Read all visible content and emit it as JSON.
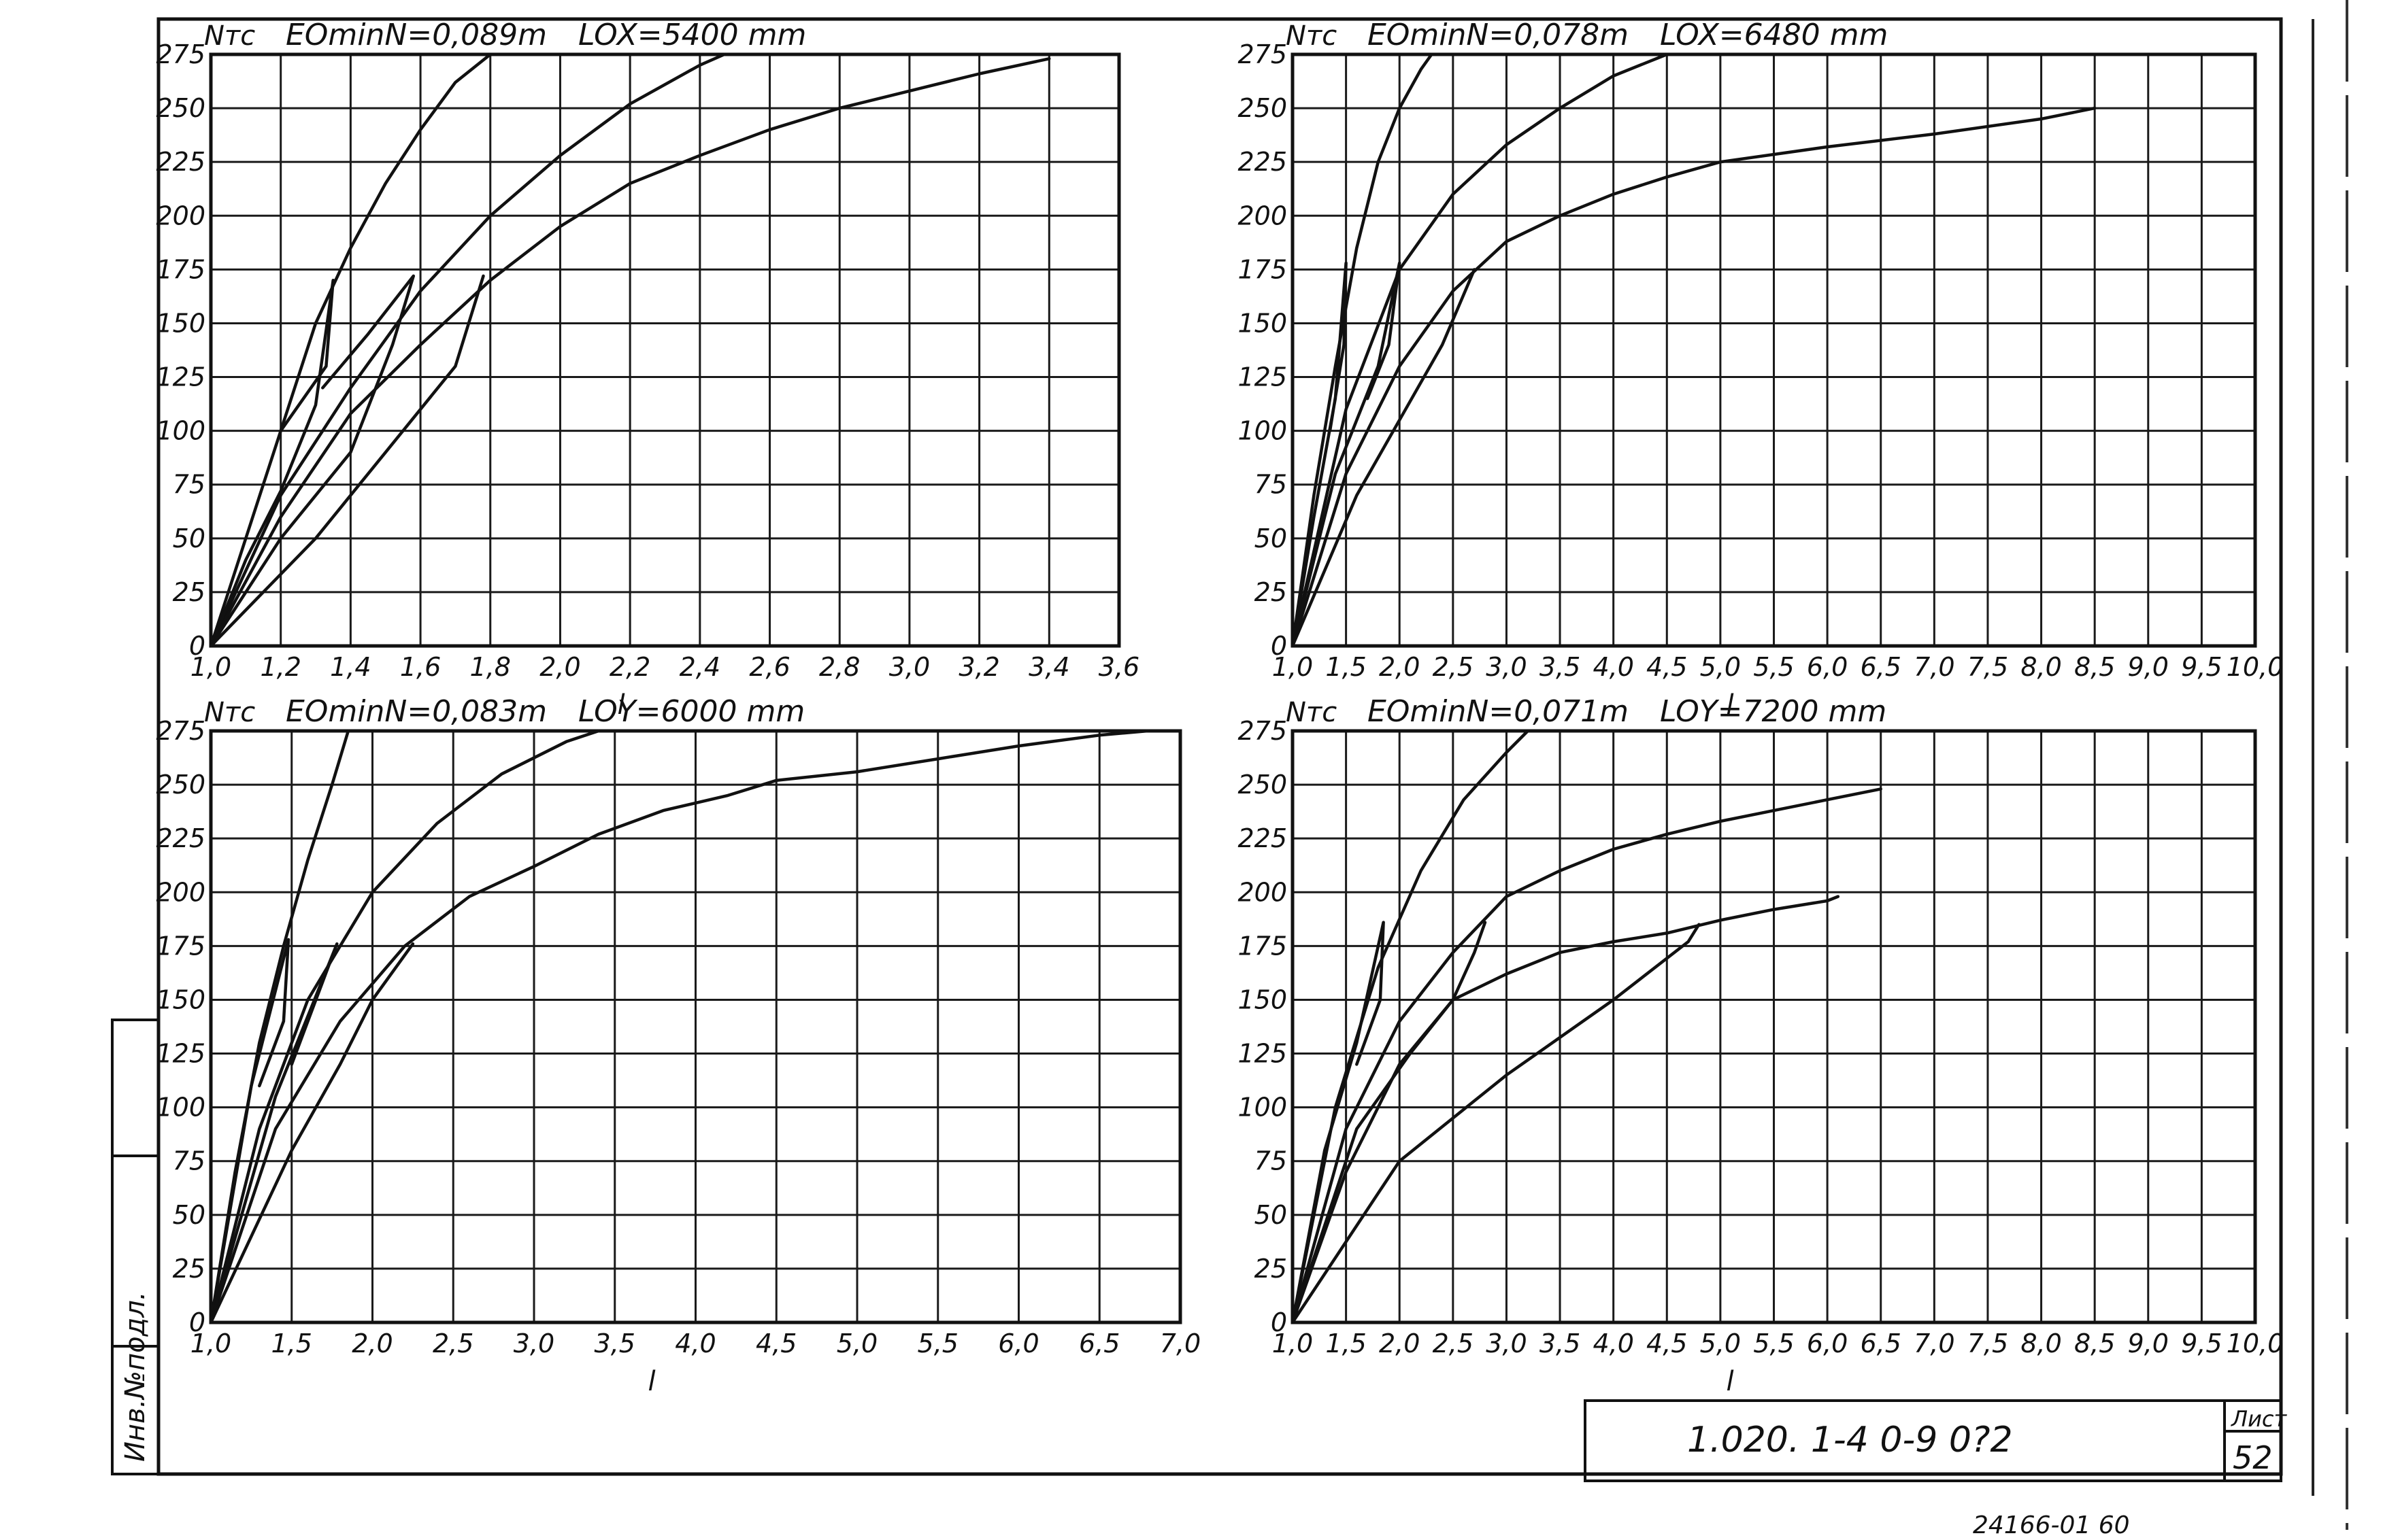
{
  "sheet": {
    "stamp_code": "1.020. 1-4    0-9    0?2",
    "sheet_label": "Лист",
    "sheet_number": "52",
    "bottom_code": "24166-01   60",
    "side_label": "Инв.№подл."
  },
  "chart_data": [
    {
      "type": "line",
      "panel": "top-left",
      "ylabel": "Nтс",
      "xlabel": "l",
      "annotation_e": "EOminN=0,089m",
      "annotation_l": "LOX=5400 mm",
      "xlim": [
        1.0,
        3.6
      ],
      "ylim": [
        0,
        275
      ],
      "x_ticks": [
        "1,0",
        "1,2",
        "1,4",
        "1,6",
        "1,8",
        "2,0",
        "2,2",
        "2,4",
        "2,6",
        "2,8",
        "3,0",
        "3,2",
        "3,4",
        "3,6"
      ],
      "y_ticks": [
        "0",
        "25",
        "50",
        "75",
        "100",
        "125",
        "150",
        "175",
        "200",
        "225",
        "250",
        "275"
      ],
      "grid": true,
      "series": [
        {
          "points": [
            [
              1.0,
              0
            ],
            [
              1.1,
              50
            ],
            [
              1.2,
              100
            ],
            [
              1.3,
              150
            ],
            [
              1.4,
              185
            ],
            [
              1.5,
              215
            ],
            [
              1.6,
              240
            ],
            [
              1.7,
              262
            ],
            [
              1.8,
              275
            ]
          ]
        },
        {
          "points": [
            [
              1.0,
              0
            ],
            [
              1.2,
              70
            ],
            [
              1.4,
              120
            ],
            [
              1.6,
              165
            ],
            [
              1.8,
              200
            ],
            [
              2.0,
              228
            ],
            [
              2.2,
              252
            ],
            [
              2.4,
              270
            ],
            [
              2.47,
              275
            ]
          ]
        },
        {
          "points": [
            [
              1.0,
              0
            ],
            [
              1.2,
              60
            ],
            [
              1.4,
              108
            ],
            [
              1.6,
              140
            ],
            [
              1.8,
              170
            ],
            [
              2.0,
              195
            ],
            [
              2.2,
              215
            ],
            [
              2.4,
              228
            ],
            [
              2.6,
              240
            ],
            [
              2.8,
              250
            ],
            [
              3.0,
              258
            ],
            [
              3.2,
              266
            ],
            [
              3.4,
              273
            ]
          ]
        },
        {
          "points": [
            [
              1.0,
              0
            ],
            [
              1.1,
              40
            ],
            [
              1.2,
              72
            ],
            [
              1.3,
              112
            ],
            [
              1.35,
              170
            ],
            [
              1.33,
              130
            ],
            [
              1.2,
              100
            ]
          ]
        },
        {
          "points": [
            [
              1.0,
              0
            ],
            [
              1.2,
              50
            ],
            [
              1.4,
              90
            ],
            [
              1.52,
              140
            ],
            [
              1.58,
              172
            ],
            [
              1.45,
              145
            ],
            [
              1.32,
              120
            ]
          ]
        },
        {
          "points": [
            [
              1.0,
              0
            ],
            [
              1.3,
              50
            ],
            [
              1.5,
              90
            ],
            [
              1.7,
              130
            ],
            [
              1.78,
              172
            ]
          ]
        }
      ]
    },
    {
      "type": "line",
      "panel": "top-right",
      "ylabel": "Nтс",
      "xlabel": "l",
      "annotation_e": "EOminN=0,078m",
      "annotation_l": "LOX=6480 mm",
      "xlim": [
        1.0,
        10.0
      ],
      "ylim": [
        0,
        275
      ],
      "x_ticks": [
        "1,0",
        "1,5",
        "2,0",
        "2,5",
        "3,0",
        "3,5",
        "4,0",
        "4,5",
        "5,0",
        "5,5",
        "6,0",
        "6,5",
        "7,0",
        "7,5",
        "8,0",
        "8,5",
        "9,0",
        "9,5",
        "10,0"
      ],
      "y_ticks": [
        "0",
        "25",
        "50",
        "75",
        "100",
        "125",
        "150",
        "175",
        "200",
        "225",
        "250",
        "275"
      ],
      "grid": true,
      "series": [
        {
          "points": [
            [
              1.0,
              0
            ],
            [
              1.2,
              70
            ],
            [
              1.4,
              130
            ],
            [
              1.6,
              185
            ],
            [
              1.8,
              225
            ],
            [
              2.0,
              250
            ],
            [
              2.2,
              268
            ],
            [
              2.3,
              275
            ]
          ]
        },
        {
          "points": [
            [
              1.0,
              0
            ],
            [
              1.5,
              110
            ],
            [
              2.0,
              175
            ],
            [
              2.5,
              210
            ],
            [
              3.0,
              233
            ],
            [
              3.5,
              250
            ],
            [
              4.0,
              265
            ],
            [
              4.5,
              275
            ]
          ]
        },
        {
          "points": [
            [
              1.0,
              0
            ],
            [
              1.5,
              80
            ],
            [
              2.0,
              130
            ],
            [
              2.5,
              165
            ],
            [
              3.0,
              188
            ],
            [
              3.5,
              200
            ],
            [
              4.0,
              210
            ],
            [
              4.5,
              218
            ],
            [
              5.0,
              225
            ],
            [
              6.0,
              232
            ],
            [
              7.0,
              238
            ],
            [
              8.0,
              245
            ],
            [
              8.5,
              250
            ]
          ]
        },
        {
          "points": [
            [
              1.0,
              0
            ],
            [
              1.2,
              60
            ],
            [
              1.4,
              115
            ],
            [
              1.5,
              178
            ],
            [
              1.48,
              140
            ],
            [
              1.35,
              100
            ]
          ]
        },
        {
          "points": [
            [
              1.0,
              0
            ],
            [
              1.4,
              80
            ],
            [
              1.8,
              130
            ],
            [
              2.0,
              178
            ],
            [
              1.9,
              140
            ],
            [
              1.7,
              115
            ]
          ]
        },
        {
          "points": [
            [
              1.0,
              0
            ],
            [
              1.6,
              70
            ],
            [
              2.0,
              105
            ],
            [
              2.4,
              140
            ],
            [
              2.7,
              175
            ]
          ]
        }
      ]
    },
    {
      "type": "line",
      "panel": "bottom-left",
      "ylabel": "Nтс",
      "xlabel": "l",
      "annotation_e": "EOminN=0,083m",
      "annotation_l": "LOY=6000 mm",
      "xlim": [
        1.0,
        7.0
      ],
      "ylim": [
        0,
        275
      ],
      "x_ticks": [
        "1,0",
        "1,5",
        "2,0",
        "2,5",
        "3,0",
        "3,5",
        "4,0",
        "4,5",
        "5,0",
        "5,5",
        "6,0",
        "6,5",
        "7,0"
      ],
      "y_ticks": [
        "0",
        "25",
        "50",
        "75",
        "100",
        "125",
        "150",
        "175",
        "200",
        "225",
        "250",
        "275"
      ],
      "grid": true,
      "series": [
        {
          "points": [
            [
              1.0,
              0
            ],
            [
              1.15,
              70
            ],
            [
              1.3,
              130
            ],
            [
              1.45,
              175
            ],
            [
              1.6,
              215
            ],
            [
              1.75,
              250
            ],
            [
              1.85,
              275
            ]
          ]
        },
        {
          "points": [
            [
              1.0,
              0
            ],
            [
              1.3,
              90
            ],
            [
              1.6,
              150
            ],
            [
              2.0,
              200
            ],
            [
              2.4,
              232
            ],
            [
              2.8,
              255
            ],
            [
              3.2,
              270
            ],
            [
              3.4,
              275
            ]
          ]
        },
        {
          "points": [
            [
              1.0,
              0
            ],
            [
              1.4,
              90
            ],
            [
              1.8,
              140
            ],
            [
              2.2,
              175
            ],
            [
              2.6,
              198
            ],
            [
              3.0,
              212
            ],
            [
              3.4,
              227
            ],
            [
              3.8,
              238
            ],
            [
              4.2,
              245
            ],
            [
              4.5,
              252
            ],
            [
              5.0,
              256
            ],
            [
              5.5,
              262
            ],
            [
              6.0,
              268
            ],
            [
              6.5,
              273
            ],
            [
              6.8,
              275
            ]
          ]
        },
        {
          "points": [
            [
              1.0,
              0
            ],
            [
              1.25,
              110
            ],
            [
              1.48,
              178
            ],
            [
              1.45,
              140
            ],
            [
              1.3,
              110
            ]
          ]
        },
        {
          "points": [
            [
              1.0,
              0
            ],
            [
              1.4,
              105
            ],
            [
              1.78,
              176
            ],
            [
              1.65,
              150
            ],
            [
              1.5,
              120
            ]
          ]
        },
        {
          "points": [
            [
              1.0,
              0
            ],
            [
              1.5,
              80
            ],
            [
              1.8,
              120
            ],
            [
              2.0,
              150
            ],
            [
              2.25,
              176
            ]
          ]
        }
      ]
    },
    {
      "type": "line",
      "panel": "bottom-right",
      "ylabel": "Nтс",
      "xlabel": "l",
      "annotation_e": "EOminN=0,071m",
      "annotation_l": "LOY=7200 mm",
      "xlim": [
        1.0,
        10.0
      ],
      "ylim": [
        0,
        275
      ],
      "x_ticks": [
        "1,0",
        "1,5",
        "2,0",
        "2,5",
        "3,0",
        "3,5",
        "4,0",
        "4,5",
        "5,0",
        "5,5",
        "6,0",
        "6,5",
        "7,0",
        "7,5",
        "8,0",
        "8,5",
        "9,0",
        "9,5",
        "10,0"
      ],
      "y_ticks": [
        "0",
        "25",
        "50",
        "75",
        "100",
        "125",
        "150",
        "175",
        "200",
        "225",
        "250",
        "275"
      ],
      "grid": true,
      "series": [
        {
          "points": [
            [
              1.0,
              0
            ],
            [
              1.4,
              100
            ],
            [
              1.8,
              165
            ],
            [
              2.2,
              210
            ],
            [
              2.6,
              243
            ],
            [
              3.0,
              265
            ],
            [
              3.2,
              275
            ]
          ]
        },
        {
          "points": [
            [
              1.0,
              0
            ],
            [
              1.5,
              90
            ],
            [
              2.0,
              140
            ],
            [
              2.5,
              172
            ],
            [
              3.0,
              198
            ],
            [
              3.5,
              210
            ],
            [
              4.0,
              220
            ],
            [
              4.5,
              227
            ],
            [
              5.0,
              233
            ],
            [
              5.5,
              238
            ],
            [
              6.0,
              243
            ],
            [
              6.5,
              248
            ]
          ]
        },
        {
          "points": [
            [
              1.0,
              0
            ],
            [
              1.5,
              70
            ],
            [
              2.0,
              120
            ],
            [
              2.5,
              150
            ],
            [
              3.0,
              162
            ],
            [
              3.5,
              172
            ],
            [
              4.0,
              177
            ],
            [
              4.5,
              181
            ],
            [
              5.0,
              187
            ],
            [
              5.5,
              192
            ],
            [
              6.0,
              196
            ],
            [
              6.1,
              198
            ]
          ]
        },
        {
          "points": [
            [
              1.0,
              0
            ],
            [
              2.0,
              75
            ],
            [
              3.0,
              115
            ],
            [
              4.0,
              150
            ],
            [
              4.7,
              177
            ],
            [
              4.8,
              185
            ]
          ]
        },
        {
          "points": [
            [
              1.0,
              0
            ],
            [
              1.3,
              80
            ],
            [
              1.6,
              130
            ],
            [
              1.85,
              186
            ],
            [
              1.82,
              150
            ],
            [
              1.6,
              120
            ]
          ]
        },
        {
          "points": [
            [
              1.0,
              0
            ],
            [
              1.6,
              90
            ],
            [
              2.1,
              125
            ],
            [
              2.5,
              150
            ],
            [
              2.7,
              172
            ],
            [
              2.8,
              186
            ]
          ]
        }
      ]
    }
  ]
}
